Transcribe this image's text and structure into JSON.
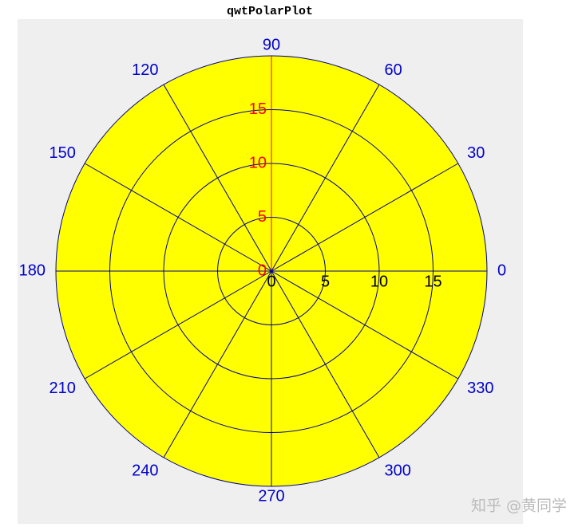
{
  "chart_data": {
    "type": "polar",
    "title": "qwtPolarPlot",
    "rlim": [
      0,
      20
    ],
    "rticks": [
      0,
      5,
      10,
      15
    ],
    "angle_ticks": [
      0,
      30,
      60,
      90,
      120,
      150,
      180,
      210,
      240,
      270,
      300,
      330
    ],
    "fill": "#ffff00",
    "grid_color": "#00008b",
    "angle_label_color": "#0000cc",
    "radial_axis_color": "#ff0000",
    "annotation": "知乎 @黄同学"
  }
}
